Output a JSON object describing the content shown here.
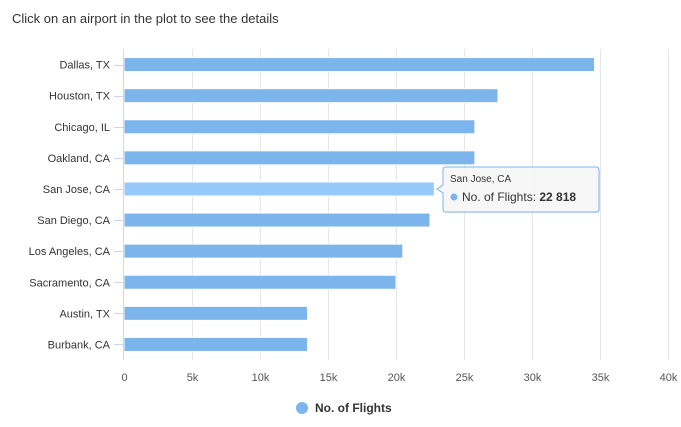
{
  "header": {
    "instruction": "Click on an airport in the plot to see the details"
  },
  "chart_data": {
    "type": "bar",
    "orientation": "horizontal",
    "categories": [
      "Dallas, TX",
      "Houston, TX",
      "Chicago, IL",
      "Oakland, CA",
      "San Jose, CA",
      "San Diego, CA",
      "Los Angeles, CA",
      "Sacramento, CA",
      "Austin, TX",
      "Burbank, CA"
    ],
    "series": [
      {
        "name": "No. of Flights",
        "values": [
          34600,
          27500,
          25800,
          25800,
          22818,
          22500,
          20500,
          20000,
          13500,
          13500
        ]
      }
    ],
    "xlim": [
      0,
      40000
    ],
    "x_ticks": [
      "0",
      "5k",
      "10k",
      "15k",
      "20k",
      "25k",
      "30k",
      "35k",
      "40k"
    ],
    "x_tick_values": [
      0,
      5000,
      10000,
      15000,
      20000,
      25000,
      30000,
      35000,
      40000
    ],
    "grid": "vertical",
    "legend_position": "bottom",
    "highlighted_category": "San Jose, CA",
    "tooltip": {
      "title": "San Jose, CA",
      "series_label": "No. of Flights:",
      "value_text": "22 818"
    },
    "colors": {
      "bar": "#7cb5ec",
      "bar_hover": "#96c9fa",
      "grid": "#e6e6e6",
      "axis": "#ccd6eb",
      "tooltip_border": "#7cb5ec"
    }
  }
}
